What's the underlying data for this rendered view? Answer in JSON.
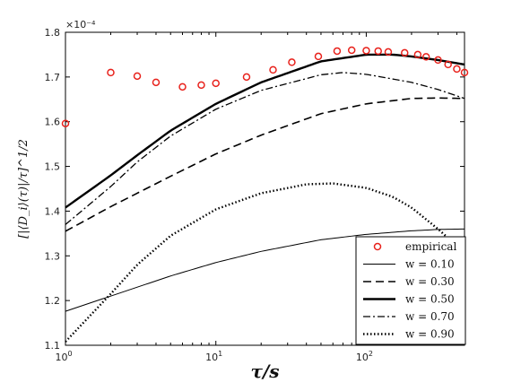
{
  "chart_data": {
    "type": "line",
    "xlabel": "τ/s",
    "ylabel": "[|⟨D_i⟩(τ)|/τ]^1/2",
    "x_scale": "log",
    "xlim": [
      1,
      450
    ],
    "ylim": [
      1.1,
      1.8
    ],
    "y_exponent_label": "×10⁻⁴",
    "x_ticks": [
      {
        "value": 1,
        "label": "10",
        "exp": "0"
      },
      {
        "value": 10,
        "label": "10",
        "exp": "1"
      },
      {
        "value": 100,
        "label": "10",
        "exp": "2"
      }
    ],
    "y_ticks": [
      {
        "value": 1.1,
        "label": "1.1"
      },
      {
        "value": 1.2,
        "label": "1.2"
      },
      {
        "value": 1.3,
        "label": "1.3"
      },
      {
        "value": 1.4,
        "label": "1.4"
      },
      {
        "value": 1.5,
        "label": "1.5"
      },
      {
        "value": 1.6,
        "label": "1.6"
      },
      {
        "value": 1.7,
        "label": "1.7"
      },
      {
        "value": 1.8,
        "label": "1.8"
      }
    ],
    "grid": false,
    "legend_position": "bottom-right",
    "scatter": {
      "name": "empirical",
      "color": "#e8211b",
      "marker": "circle-open",
      "points": [
        [
          1,
          1.596
        ],
        [
          2,
          1.71
        ],
        [
          3,
          1.702
        ],
        [
          4,
          1.688
        ],
        [
          6,
          1.678
        ],
        [
          8,
          1.682
        ],
        [
          10,
          1.686
        ],
        [
          16,
          1.7
        ],
        [
          24,
          1.716
        ],
        [
          32,
          1.733
        ],
        [
          48,
          1.746
        ],
        [
          64,
          1.758
        ],
        [
          80,
          1.76
        ],
        [
          100,
          1.759
        ],
        [
          120,
          1.758
        ],
        [
          140,
          1.756
        ],
        [
          180,
          1.754
        ],
        [
          220,
          1.75
        ],
        [
          250,
          1.745
        ],
        [
          300,
          1.738
        ],
        [
          350,
          1.728
        ],
        [
          400,
          1.718
        ],
        [
          450,
          1.71
        ]
      ]
    },
    "series": [
      {
        "name": "w = 0.10",
        "style": "solid-thin",
        "x": [
          1,
          2,
          5,
          10,
          20,
          50,
          100,
          200,
          300,
          450
        ],
        "y": [
          1.176,
          1.21,
          1.255,
          1.285,
          1.31,
          1.336,
          1.348,
          1.356,
          1.359,
          1.36
        ]
      },
      {
        "name": "w = 0.30",
        "style": "dashed",
        "x": [
          1,
          2,
          5,
          10,
          20,
          50,
          100,
          200,
          300,
          450
        ],
        "y": [
          1.355,
          1.41,
          1.478,
          1.528,
          1.57,
          1.618,
          1.64,
          1.652,
          1.653,
          1.652
        ]
      },
      {
        "name": "w = 0.50",
        "style": "solid-thick",
        "x": [
          1,
          2,
          3,
          5,
          10,
          20,
          50,
          100,
          150,
          200,
          300,
          450
        ],
        "y": [
          1.408,
          1.48,
          1.525,
          1.58,
          1.64,
          1.688,
          1.735,
          1.75,
          1.75,
          1.746,
          1.738,
          1.728
        ]
      },
      {
        "name": "w = 0.70",
        "style": "dashdot",
        "x": [
          1,
          2,
          3,
          5,
          10,
          20,
          50,
          70,
          100,
          200,
          300,
          450
        ],
        "y": [
          1.37,
          1.455,
          1.51,
          1.568,
          1.628,
          1.67,
          1.705,
          1.71,
          1.706,
          1.688,
          1.672,
          1.652
        ]
      },
      {
        "name": "w = 0.90",
        "style": "dotted",
        "x": [
          1,
          2,
          3,
          5,
          10,
          20,
          40,
          60,
          100,
          150,
          200,
          300,
          350
        ],
        "y": [
          1.108,
          1.215,
          1.28,
          1.345,
          1.404,
          1.44,
          1.46,
          1.462,
          1.452,
          1.432,
          1.408,
          1.36,
          1.34
        ]
      }
    ],
    "colors": {
      "scatter": "#e8211b",
      "lines": "#000000"
    }
  }
}
